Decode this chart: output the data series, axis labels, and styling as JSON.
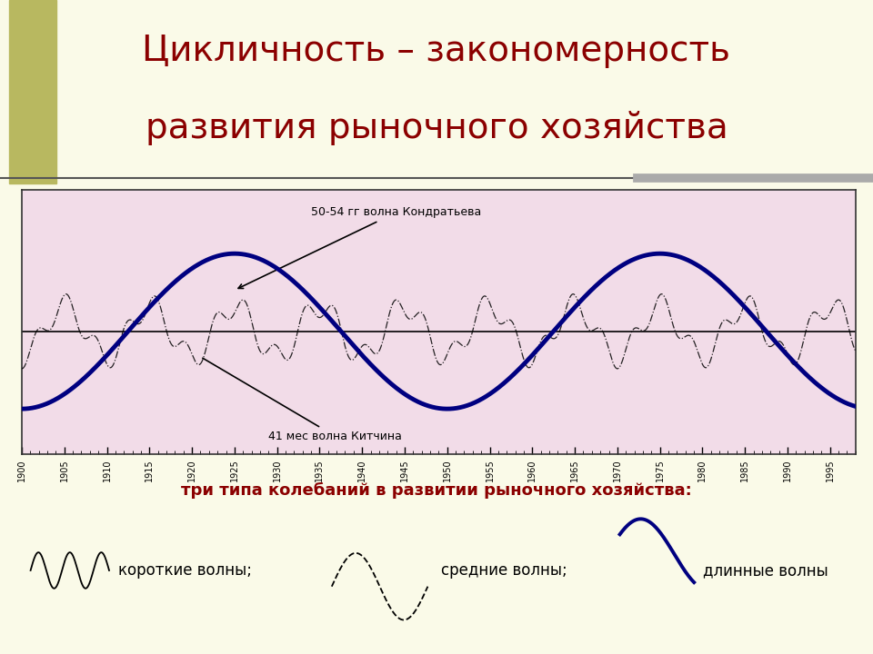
{
  "title_line1": "Цикличность – закономерность",
  "title_line2": "развития рыночного хозяйства",
  "title_color": "#8B0000",
  "bg_color": "#FAFAE8",
  "chart_bg_color": "#F2DCE8",
  "annotation_kondratiev": "50-54 гг волна Кондратьева",
  "annotation_kitchin": "41 мес волна Китчина",
  "bottom_title": "три типа колебаний в развитии рыночного хозяйства:",
  "bottom_title_color": "#8B0000",
  "label_short": "короткие волны;",
  "label_medium": "средние волны;",
  "label_long": "длинные волны",
  "kondratiev_period": 50,
  "kitchin_period": 3.5,
  "juglar_period": 10,
  "line_color_long": "#000080",
  "line_color_short": "#000000",
  "olive_color": "#B8B860"
}
